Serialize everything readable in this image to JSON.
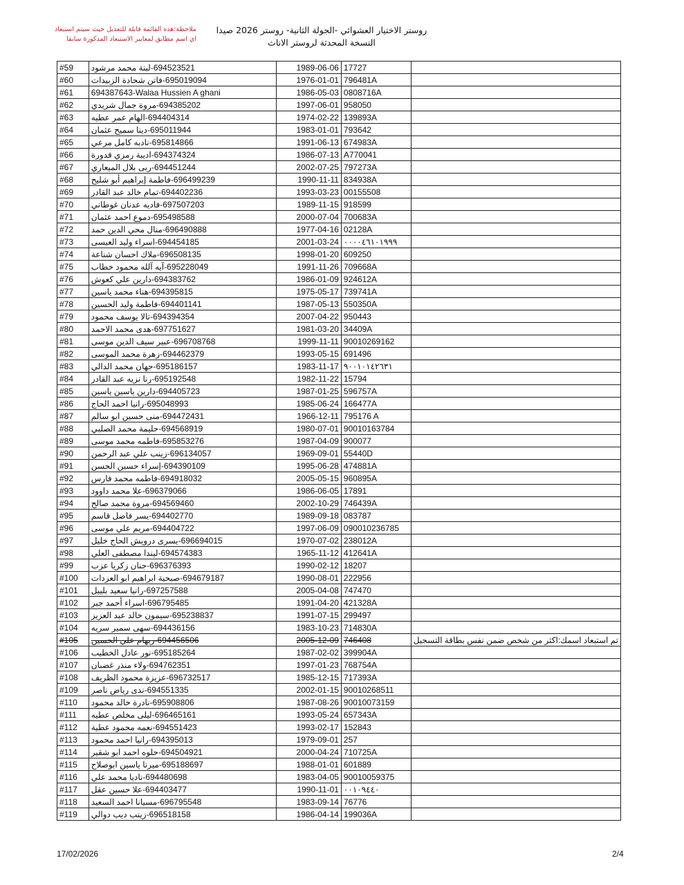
{
  "header": {
    "title_line1": "روستر الاختيار العشوائي -الجولة الثانية- روستر 2026 صيدا",
    "title_line2": "النسخة المحدثة لروستر الاناث",
    "note_line1": "ملاحظة:هذه القائمة قابلة للتعديل حيث سيتم استبعاد",
    "note_line2": "اي اسم مطابق لمعايير الاستبعاد المذكورة سابقا",
    "note_color": "#b03030"
  },
  "rows": [
    [
      "#59",
      "694523521-لبنة محمد مرشود",
      "1989-06-06",
      "17727",
      ""
    ],
    [
      "#60",
      "695019094-فاتن شحادة الزبيدات",
      "1976-01-01",
      "796481A",
      ""
    ],
    [
      "#61",
      "694387643-Walaa Hussien A ghani",
      "1986-05-03",
      "0808716A",
      ""
    ],
    [
      "#62",
      "694385202-مروة جمال شريدي",
      "1997-06-01",
      "958050",
      ""
    ],
    [
      "#63",
      "694404314-الهام عمر عطيه",
      "1974-02-22",
      "139893A",
      ""
    ],
    [
      "#64",
      "695011944-دينا سميح عثمان",
      "1983-01-01",
      "793642",
      ""
    ],
    [
      "#65",
      "695814866-نادبه كامل مرعي",
      "1991-06-13",
      "674983A",
      ""
    ],
    [
      "#66",
      "694374324-اديبة رمزي قدورة",
      "1986-07-13",
      "A770041",
      ""
    ],
    [
      "#67",
      "694451244-ربى بلال الميعاري",
      "2002-07-25",
      "797273A",
      ""
    ],
    [
      "#68",
      "696499239-فاطمة إبراهيم أبو شليح",
      "1990-11-11",
      "834938A",
      ""
    ],
    [
      "#69",
      "694402236-تمام خالد عبد القادر",
      "1993-03-23",
      "00155508",
      ""
    ],
    [
      "#70",
      "697507203-فاديه عدنان غوطاني",
      "1989-11-15",
      "918599",
      ""
    ],
    [
      "#71",
      "695498588-دموع احمد عثمان",
      "2000-07-04",
      "700683A",
      ""
    ],
    [
      "#72",
      "696490888-منال محي الدين حمد",
      "1977-04-16",
      "02128A",
      ""
    ],
    [
      "#73",
      "694454185-اسراء وليد العيسى",
      "2001-03-24",
      "٠٠٠٠٤٦١٠١٩٩٩",
      ""
    ],
    [
      "#74",
      "696508135-ملاك احسان شناعة",
      "1998-01-20",
      "609250",
      ""
    ],
    [
      "#75",
      "695228049-آيه آلله محمود خطاب",
      "1991-11-26",
      "709668A",
      ""
    ],
    [
      "#76",
      "694383762-دارين علي كعوش",
      "1986-01-09",
      "924612A",
      ""
    ],
    [
      "#77",
      "694395815-هناء محمد ياسين",
      "1975-05-17",
      "739741A",
      ""
    ],
    [
      "#78",
      "694401141-فاطمة وليد الحسين",
      "1987-05-13",
      "550350A",
      ""
    ],
    [
      "#79",
      "694394354-تالا يوسف محمود",
      "2007-04-22",
      "950443",
      ""
    ],
    [
      "#80",
      "697751627-هدى محمد الاحمد",
      "1981-03-20",
      "34409A",
      ""
    ],
    [
      "#81",
      "696708768-عبير سيف الدين موسى",
      "1999-11-11",
      "90010269162",
      ""
    ],
    [
      "#82",
      "694462379-زهرة محمد الموسى",
      "1993-05-15",
      "691496",
      ""
    ],
    [
      "#83",
      "695186157-جهان محمد الدالي",
      "1983-11-17",
      "٩٠٠١٠١٤٢٦٣١",
      ""
    ],
    [
      "#84",
      "695192548-رنا نزيه عبد القادر",
      "1982-11-22",
      "15794",
      ""
    ],
    [
      "#85",
      "694405723-دارين ياسين ياسين",
      "1987-01-25",
      "596757A",
      ""
    ],
    [
      "#86",
      "695048993-رانيا احمد الحاج",
      "1985-06-24",
      "166477A",
      ""
    ],
    [
      "#87",
      "694472431-منى حسين ابو سالم",
      "1966-12-11",
      "795176  A",
      ""
    ],
    [
      "#88",
      "694568919-حليمة محمد الصلبي",
      "1980-07-01",
      "90010163784",
      ""
    ],
    [
      "#89",
      "695853276-فاطمه محمد موسى",
      "1987-04-09",
      "900077",
      ""
    ],
    [
      "#90",
      "696134057-زينب علي عبد الرحمن",
      "1969-09-01",
      "55440D",
      ""
    ],
    [
      "#91",
      "694390109-إسراء حسين الحسن",
      "1995-06-28",
      "474881A",
      ""
    ],
    [
      "#92",
      "694918032-فاطمه محمد فارس",
      "2005-05-15",
      "960895A",
      ""
    ],
    [
      "#93",
      "696379066-علا محمد داوود",
      "1986-06-05",
      "17891",
      ""
    ],
    [
      "#94",
      "694569460-مروة محمد صالح",
      "2002-10-29",
      "746439A",
      ""
    ],
    [
      "#95",
      "694402770-يسر فاضل قاسم",
      "1989-09-18",
      "083787",
      ""
    ],
    [
      "#96",
      "694404722-مريم علي موسى",
      "1997-06-09",
      "090010236785",
      ""
    ],
    [
      "#97",
      "696694015-يسرى درويش الحاج خليل",
      "1970-07-02",
      "238012A",
      ""
    ],
    [
      "#98",
      "694574383-ليندا مصطفى العلي",
      "1965-11-12",
      "412641A",
      ""
    ],
    [
      "#99",
      "696376393-جنان زكريا عزب",
      "1990-02-12",
      "18207",
      ""
    ],
    [
      "#100",
      "694679187-صبحية ابراهيم ابو العردات",
      "1990-08-01",
      "222956",
      ""
    ],
    [
      "#101",
      "697257588-رانيا سعيد بليبل",
      "2005-04-08",
      "747470",
      ""
    ],
    [
      "#102",
      "696795485-اسراء أحمد جبر",
      "1991-04-20",
      "421328A",
      ""
    ],
    [
      "#103",
      "695238837-سيمون خالد عبد العزيز",
      "1991-07-15",
      "299497",
      ""
    ],
    [
      "#104",
      "694436156-سهى سمير سريه",
      "1983-10-23",
      "714830A",
      ""
    ],
    [
      "#105",
      "694456506-ريهام علي الحسين",
      "2005-12-09",
      "746408",
      "تم استبعاد اسمك:اكثر من شخص ضمن نفس بطاقة التسجيل"
    ],
    [
      "#106",
      "695185264-نور عادل الخطيب",
      "1987-02-02",
      "399904A",
      ""
    ],
    [
      "#107",
      "694762351-ولاء منذر غضبان",
      "1997-01-23",
      "768754A",
      ""
    ],
    [
      "#108",
      "696732517-عزيزة محمود الظريف",
      "1985-12-15",
      "717393A",
      ""
    ],
    [
      "#109",
      "694551335-ندى رياض ناصر",
      "2002-01-15",
      "90010268511",
      ""
    ],
    [
      "#110",
      "695908806-نادرة خالد محمود",
      "1987-08-26",
      "90010073159",
      ""
    ],
    [
      "#111",
      "696465161-ليلى مخلص عطيه",
      "1993-05-24",
      "657343A",
      ""
    ],
    [
      "#112",
      "694551423-نعمه محمود عطية",
      "1993-02-17",
      "152843",
      ""
    ],
    [
      "#113",
      "694395013-رانيا احمد محمود",
      "1979-09-01",
      "257",
      ""
    ],
    [
      "#114",
      "694504921-حلوه احمد ابو شقير",
      "2000-04-24",
      "710725A",
      ""
    ],
    [
      "#115",
      "695188697-ميرنا ياسين ابوصلاح",
      "1988-01-01",
      "601889",
      ""
    ],
    [
      "#116",
      "694480698-ناديا محمد علي",
      "1983-04-05",
      "90010059375",
      ""
    ],
    [
      "#117",
      "694403477-علا حسين عقل",
      "1990-11-01",
      "٠٠١٠٩٤٤٠",
      ""
    ],
    [
      "#118",
      "696795548-مسيانا احمد السعيد",
      "1983-09-14",
      "76776",
      ""
    ],
    [
      "#119",
      "696518158-زينب ديب دوالي",
      "1986-04-14",
      "199036A",
      ""
    ]
  ],
  "struck_rows": [
    "#105"
  ],
  "footer": {
    "date": "17/02/2026",
    "page": "2/4"
  }
}
